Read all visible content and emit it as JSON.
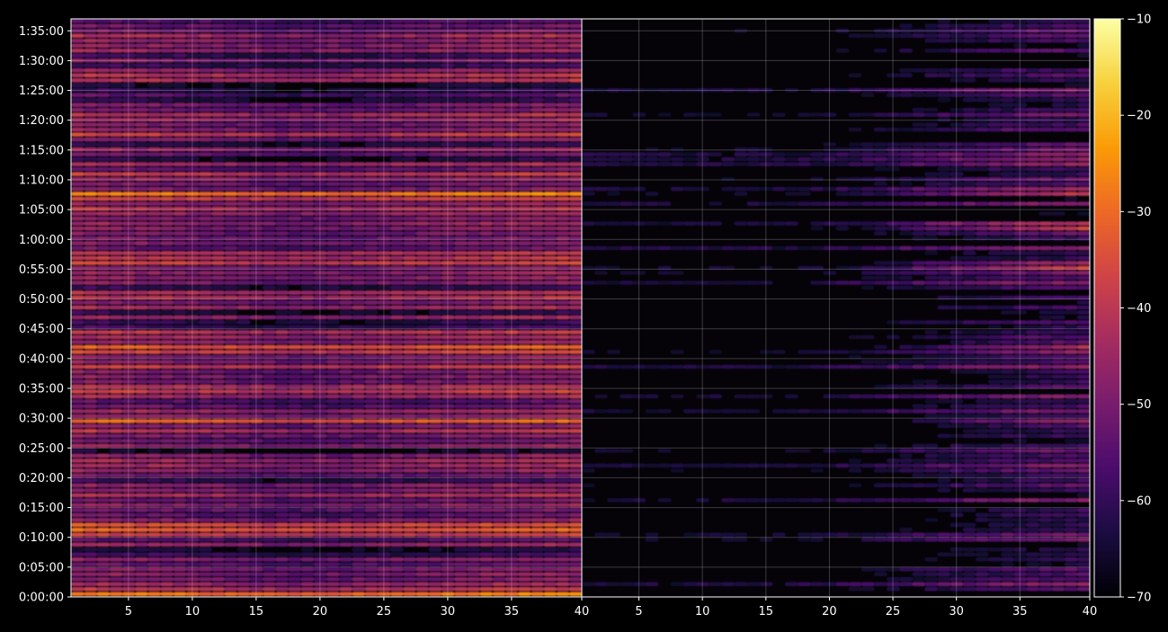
{
  "chart_data": {
    "type": "heatmap",
    "title": "",
    "colormap": "inferno",
    "colormap_stops": [
      "#000004",
      "#1b0c41",
      "#4a0c6b",
      "#781c6d",
      "#a52c60",
      "#cf4446",
      "#ed6925",
      "#fb9b06",
      "#f7d13d",
      "#fcffa4"
    ],
    "panels": [
      {
        "name": "",
        "x_range": [
          1,
          40
        ],
        "x_ticks": [
          5,
          10,
          15,
          20,
          25,
          30,
          35,
          40
        ],
        "x_tick_labels": [
          "5",
          "10",
          "15",
          "20",
          "25",
          "30",
          "35",
          "40"
        ],
        "base_level": -50,
        "x_gradient": [
          -44,
          -46,
          -48,
          -51,
          -49,
          -47,
          -45,
          -44
        ],
        "hot_rows": [
          {
            "time_min": 0.5,
            "level": -38
          },
          {
            "time_min": 11.5,
            "level": -40
          },
          {
            "time_min": 29.5,
            "level": -37
          },
          {
            "time_min": 42.0,
            "level": -38
          },
          {
            "time_min": 55.5,
            "level": -33
          },
          {
            "time_min": 67.5,
            "level": -36
          },
          {
            "time_min": 91.5,
            "level": -44
          }
        ]
      },
      {
        "name": "",
        "x_range": [
          1,
          40
        ],
        "x_ticks": [
          5,
          10,
          15,
          20,
          25,
          30,
          35,
          40
        ],
        "x_tick_labels": [
          "5",
          "10",
          "15",
          "20",
          "25",
          "30",
          "35",
          "40"
        ],
        "base_level": -68,
        "x_gradient": [
          -69,
          -70,
          -70,
          -70,
          -66,
          -61,
          -57,
          -54
        ],
        "hot_rows": [
          {
            "time_min": 29.5,
            "level": -50
          },
          {
            "time_min": 55.5,
            "level": -48
          },
          {
            "time_min": 62.0,
            "level": -45
          },
          {
            "time_min": 67.5,
            "level": -52
          },
          {
            "time_min": 42.0,
            "level": -50
          }
        ]
      }
    ],
    "y": {
      "range_min": [
        0,
        97
      ],
      "ticks_min": [
        0,
        5,
        10,
        15,
        20,
        25,
        30,
        35,
        40,
        45,
        50,
        55,
        60,
        65,
        70,
        75,
        80,
        85,
        90,
        95
      ],
      "tick_labels": [
        "0:00:00",
        "0:05:00",
        "0:10:00",
        "0:15:00",
        "0:20:00",
        "0:25:00",
        "0:30:00",
        "0:35:00",
        "0:40:00",
        "0:45:00",
        "0:50:00",
        "0:55:00",
        "1:00:00",
        "1:05:00",
        "1:10:00",
        "1:15:00",
        "1:20:00",
        "1:25:00",
        "1:30:00",
        "1:35:00"
      ]
    },
    "colorbar": {
      "range": [
        -70,
        -10
      ],
      "ticks": [
        -10,
        -20,
        -30,
        -40,
        -50,
        -60,
        -70
      ],
      "tick_labels": [
        "−10",
        "−20",
        "−30",
        "−40",
        "−50",
        "−60",
        "−70"
      ]
    },
    "grid": true,
    "background": "#000000",
    "grid_color": "#ffffff"
  }
}
